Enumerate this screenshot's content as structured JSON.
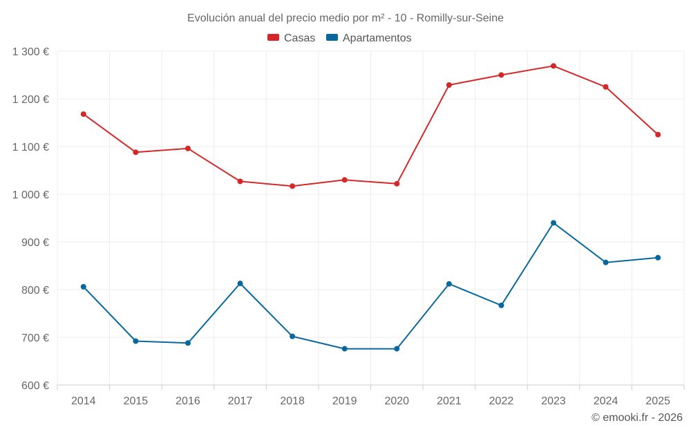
{
  "chart_data": {
    "type": "line",
    "title": "Evolución anual del precio medio por m² - 10 - Romilly-sur-Seine",
    "categories": [
      "2014",
      "2015",
      "2016",
      "2017",
      "2018",
      "2019",
      "2020",
      "2021",
      "2022",
      "2023",
      "2024",
      "2025"
    ],
    "ylim": [
      600,
      1300
    ],
    "yticks": [
      600,
      700,
      800,
      900,
      1000,
      1100,
      1200,
      1300
    ],
    "ytick_labels": [
      "600 €",
      "700 €",
      "800 €",
      "900 €",
      "1 000 €",
      "1 100 €",
      "1 200 €",
      "1 300 €"
    ],
    "legend_position": "top-center",
    "grid": true,
    "series": [
      {
        "name": "Casas",
        "color": "#d62728",
        "values": [
          1168,
          1088,
          1096,
          1027,
          1017,
          1030,
          1022,
          1229,
          1250,
          1269,
          1225,
          1125
        ]
      },
      {
        "name": "Apartamentos",
        "color": "#08689e",
        "values": [
          806,
          692,
          688,
          813,
          702,
          676,
          676,
          812,
          767,
          940,
          857,
          867
        ]
      }
    ]
  },
  "credit": "© emooki.fr - 2026"
}
